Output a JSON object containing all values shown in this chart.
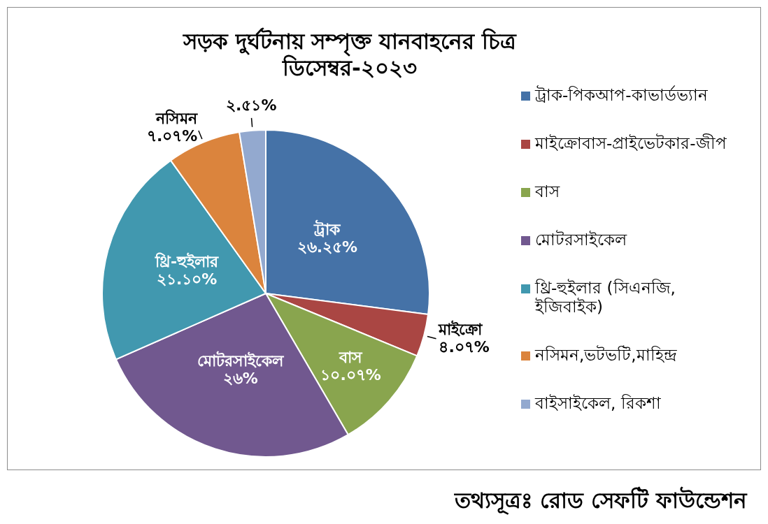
{
  "chart_data": {
    "type": "pie",
    "title": "সড়ক দুর্ঘটনায় সম্পৃক্ত যানবাহনের চিত্র",
    "subtitle": "ডিসেম্বর-২০২৩",
    "categories": [
      "ট্রাক-পিকআপ-কাভার্ডভ্যান",
      "মাইক্রোবাস-প্রাইভেটকার-জীপ",
      "বাস",
      "মোটরসাইকেল",
      "থ্রি-হুইলার (সিএনজি, ইজিবাইক)",
      "নসিমন,ভটভটি,মাহিন্দ্র",
      "বাইসাইকেল, রিকশা"
    ],
    "values": [
      26.25,
      4.07,
      10.07,
      26,
      21.1,
      7.07,
      2.51
    ],
    "colors": [
      "#4572a7",
      "#aa4643",
      "#89a54e",
      "#71588f",
      "#4198af",
      "#db843d",
      "#93a9cf"
    ],
    "value_labels": [
      "ট্রাক\n২৬.২৫%",
      "মাইক্রো\n৪.০৭%",
      "বাস\n১০.০৭%",
      "মোটরসাইকেল\n২৬%",
      "থ্রি-হুইলার\n২১.১০%",
      "নসিমন\n৭.০৭%",
      "২.৫১%"
    ],
    "legend": "right",
    "annotations": [
      "তথ্যসূত্রঃ রোড সেফটি ফাউন্ডেশন"
    ]
  }
}
